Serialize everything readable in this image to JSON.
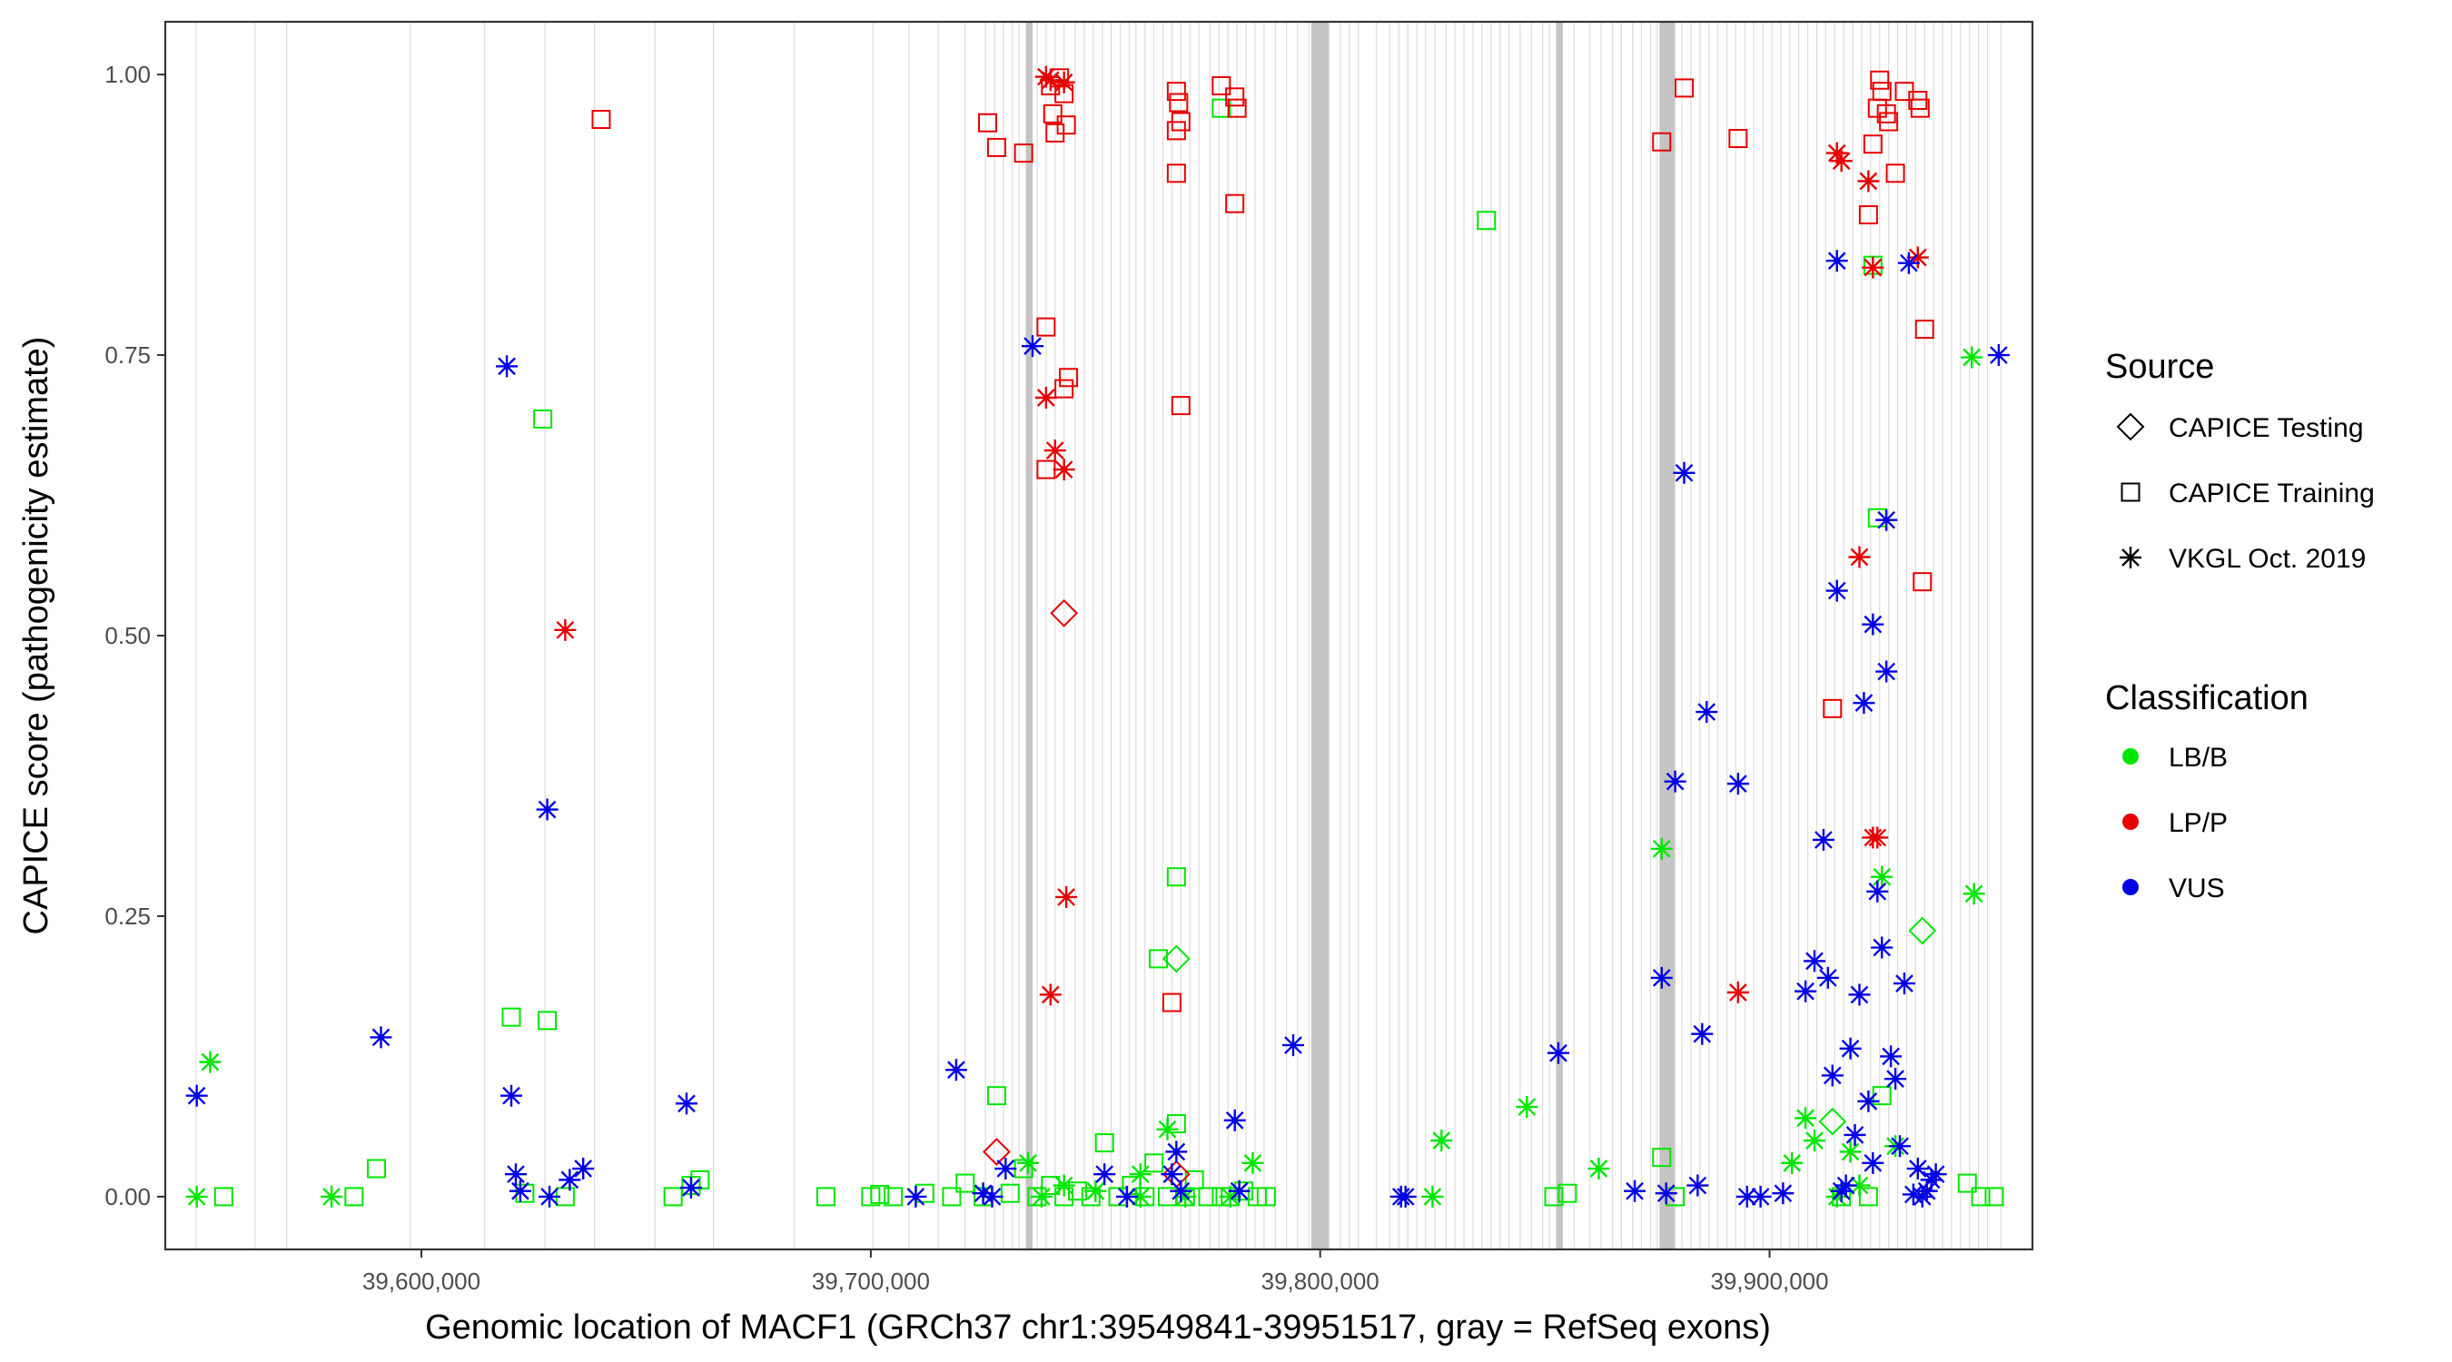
{
  "chart_data": {
    "type": "scatter",
    "xlabel": "Genomic location of MACF1 (GRCh37 chr1:39549841-39951517, gray = RefSeq exons)",
    "ylabel": "CAPICE score (pathogenicity estimate)",
    "xlim": [
      39543000,
      39958500
    ],
    "ylim": [
      -0.047,
      1.047
    ],
    "x_ticks": [
      39600000,
      39700000,
      39800000,
      39900000
    ],
    "x_tick_labels": [
      "39,600,000",
      "39,700,000",
      "39,800,000",
      "39,900,000"
    ],
    "y_ticks": [
      0,
      0.25,
      0.5,
      0.75,
      1.0
    ],
    "y_tick_labels": [
      "0.00",
      "0.25",
      "0.50",
      "0.75",
      "1.00"
    ],
    "grid": false,
    "exons": {
      "thin": [
        39549841,
        39563000,
        39570000,
        39597500,
        39614000,
        39627500,
        39638500,
        39652000,
        39665000,
        39683000,
        39700500,
        39708500,
        39715000,
        39721000,
        39725500,
        39727500,
        39729500,
        39731500,
        39733000,
        39735000,
        39737000,
        39739000,
        39741000,
        39743000,
        39745500,
        39747500,
        39749500,
        39751500,
        39753500,
        39755500,
        39757500,
        39759000,
        39761000,
        39763000,
        39765000,
        39767000,
        39769000,
        39771000,
        39773000,
        39775500,
        39777500,
        39779500,
        39781500,
        39783500,
        39785500,
        39787500,
        39790000,
        39792500,
        39795000,
        39797500,
        39804500,
        39806500,
        39808500,
        39812500,
        39815500,
        39817500,
        39819500,
        39821500,
        39823500,
        39825500,
        39828000,
        39830000,
        39832000,
        39834000,
        39836000,
        39838000,
        39840000,
        39842000,
        39844500,
        39847000,
        39849500,
        39851000,
        39856500,
        39860000,
        39862500,
        39865000,
        39867000,
        39869500,
        39871500,
        39873500,
        39875000,
        39880500,
        39882500,
        39884500,
        39886500,
        39888500,
        39890500,
        39892500,
        39894500,
        39896500,
        39898500,
        39900500,
        39902500,
        39904500,
        39906500,
        39908500,
        39910500,
        39912500,
        39914500,
        39916500,
        39918500,
        39920500,
        39922500,
        39924500,
        39926500,
        39928500,
        39930500,
        39932500,
        39934500,
        39936500,
        39938500,
        39940500,
        39942500,
        39944500,
        39946500,
        39948500,
        39951517
      ],
      "thick": [
        [
          39734500,
          39736000
        ],
        [
          39798000,
          39802000
        ],
        [
          39852500,
          39854000
        ],
        [
          39875500,
          39879000
        ]
      ]
    },
    "series": [
      {
        "name": "VKGL LB/B",
        "source": "VKGL Oct. 2019",
        "classification": "LB/B",
        "shape": "asterisk",
        "color": "#00e600",
        "x": [
          39550000,
          39553000,
          39580000,
          39735000,
          39738000,
          39743000,
          39750000,
          39760000,
          39766000,
          39770000,
          39785000,
          39827000,
          39846000,
          39862000,
          39876000,
          39908000,
          39910000,
          39915000,
          39918000,
          39925000,
          39928000,
          39945000,
          39945500,
          39760000,
          39780000,
          39825000,
          39905000,
          39920000
        ],
        "y": [
          0.0,
          0.12,
          0.0,
          0.03,
          0.0,
          0.01,
          0.005,
          0.02,
          0.06,
          0.0,
          0.03,
          0.05,
          0.08,
          0.025,
          0.31,
          0.07,
          0.05,
          0.0,
          0.04,
          0.285,
          0.045,
          0.748,
          0.27,
          0.0,
          0.0,
          0.0,
          0.03,
          0.01
        ]
      },
      {
        "name": "Training LB/B",
        "source": "CAPICE Training",
        "classification": "LB/B",
        "shape": "square",
        "color": "#00e600",
        "x": [
          39556000,
          39585000,
          39590000,
          39620000,
          39623000,
          39628000,
          39627000,
          39632000,
          39656000,
          39660000,
          39662000,
          39690000,
          39700000,
          39702000,
          39705000,
          39712000,
          39718000,
          39721000,
          39725000,
          39728000,
          39731000,
          39734000,
          39737000,
          39740000,
          39743000,
          39746000,
          39749000,
          39752000,
          39755000,
          39758000,
          39761000,
          39763000,
          39766000,
          39768000,
          39770000,
          39772000,
          39775000,
          39778000,
          39780000,
          39783000,
          39786000,
          39788000,
          39837000,
          39852000,
          39855000,
          39876000,
          39879000,
          39916000,
          39922000,
          39925000,
          39944000,
          39947000,
          39950000,
          39924000,
          39768000,
          39764000,
          39778000,
          39923000
        ],
        "y": [
          0.0,
          0.0,
          0.025,
          0.16,
          0.003,
          0.157,
          0.693,
          0.0,
          0.0,
          0.01,
          0.015,
          0.0,
          0.0,
          0.002,
          0.0,
          0.003,
          0.0,
          0.012,
          0.0,
          0.09,
          0.003,
          0.025,
          0.0,
          0.01,
          0.0,
          0.005,
          0.0,
          0.048,
          0.0,
          0.01,
          0.0,
          0.03,
          0.0,
          0.065,
          0.0,
          0.015,
          0.0,
          0.0,
          0.0,
          0.005,
          0.0,
          0.0,
          0.87,
          0.0,
          0.003,
          0.035,
          0.0,
          0.0,
          0.0,
          0.09,
          0.012,
          0.0,
          0.0,
          0.605,
          0.285,
          0.212,
          0.97,
          0.83
        ]
      },
      {
        "name": "Testing LB/B",
        "source": "CAPICE Testing",
        "classification": "LB/B",
        "shape": "diamond",
        "color": "#00e600",
        "x": [
          39768000,
          39914000,
          39934000
        ],
        "y": [
          0.212,
          0.067,
          0.237
        ]
      },
      {
        "name": "VKGL LP/P",
        "source": "VKGL Oct. 2019",
        "classification": "LP/P",
        "shape": "asterisk",
        "color": "#e60000",
        "x": [
          39632000,
          39739000,
          39740000,
          39741000,
          39743000,
          39743500,
          39743000,
          39739000,
          39740000,
          39893000,
          39915000,
          39916000,
          39920000,
          39922000,
          39923000,
          39923000,
          39924000,
          39933000
        ],
        "y": [
          0.505,
          0.998,
          0.995,
          0.665,
          0.648,
          0.267,
          0.993,
          0.712,
          0.18,
          0.182,
          0.93,
          0.923,
          0.57,
          0.905,
          0.32,
          0.828,
          0.32,
          0.837
        ]
      },
      {
        "name": "Training LP/P",
        "source": "CAPICE Training",
        "classification": "LP/P",
        "shape": "square",
        "color": "#e60000",
        "x": [
          39640000,
          39726000,
          39728000,
          39734000,
          39739000,
          39740000,
          39740500,
          39741000,
          39742000,
          39743000,
          39743500,
          39744000,
          39743000,
          39767000,
          39768000,
          39768500,
          39769000,
          39768000,
          39768000,
          39769000,
          39778000,
          39781000,
          39781500,
          39781000,
          39739000,
          39876000,
          39881000,
          39893000,
          39914000,
          39922000,
          39923000,
          39924000,
          39924500,
          39925000,
          39926000,
          39926500,
          39928000,
          39930000,
          39933000,
          39933500,
          39934000,
          39934500
        ],
        "y": [
          0.96,
          0.957,
          0.935,
          0.93,
          0.775,
          0.99,
          0.965,
          0.948,
          0.997,
          0.983,
          0.955,
          0.73,
          0.72,
          0.173,
          0.985,
          0.975,
          0.958,
          0.95,
          0.912,
          0.705,
          0.99,
          0.98,
          0.97,
          0.885,
          0.648,
          0.94,
          0.988,
          0.943,
          0.435,
          0.875,
          0.938,
          0.97,
          0.995,
          0.985,
          0.965,
          0.958,
          0.912,
          0.985,
          0.977,
          0.97,
          0.548,
          0.773
        ]
      },
      {
        "name": "Testing LP/P",
        "source": "CAPICE Testing",
        "classification": "LP/P",
        "shape": "diamond",
        "color": "#e60000",
        "x": [
          39728000,
          39743000,
          39768000
        ],
        "y": [
          0.04,
          0.52,
          0.02
        ]
      },
      {
        "name": "VKGL VUS",
        "source": "VKGL Oct. 2019",
        "classification": "VUS",
        "shape": "asterisk",
        "color": "#0000e6",
        "x": [
          39550000,
          39591000,
          39619000,
          39620000,
          39621000,
          39622000,
          39628000,
          39628500,
          39633000,
          39636000,
          39659000,
          39660000,
          39710000,
          39719000,
          39725000,
          39727000,
          39730000,
          39736000,
          39752000,
          39757000,
          39767000,
          39768000,
          39769000,
          39781000,
          39782000,
          39794000,
          39818000,
          39819000,
          39853000,
          39870000,
          39876000,
          39877000,
          39879000,
          39881000,
          39884000,
          39885000,
          39886000,
          39893000,
          39895000,
          39898000,
          39903000,
          39908000,
          39910000,
          39912000,
          39913000,
          39914000,
          39915000,
          39916000,
          39917000,
          39918000,
          39919000,
          39920000,
          39921000,
          39922000,
          39923000,
          39924000,
          39925000,
          39926000,
          39927000,
          39928000,
          39929000,
          39930000,
          39931000,
          39932000,
          39933000,
          39934000,
          39935000,
          39936000,
          39937000,
          39951000,
          39926000,
          39915000,
          39923000
        ],
        "y": [
          0.09,
          0.142,
          0.74,
          0.09,
          0.02,
          0.005,
          0.345,
          0.0,
          0.015,
          0.025,
          0.083,
          0.008,
          0.0,
          0.113,
          0.003,
          0.0,
          0.025,
          0.758,
          0.02,
          0.0,
          0.02,
          0.04,
          0.005,
          0.068,
          0.005,
          0.135,
          0.0,
          0.0,
          0.128,
          0.005,
          0.195,
          0.003,
          0.37,
          0.645,
          0.01,
          0.145,
          0.432,
          0.368,
          0.0,
          0.0,
          0.003,
          0.183,
          0.21,
          0.318,
          0.195,
          0.108,
          0.54,
          0.005,
          0.01,
          0.132,
          0.055,
          0.18,
          0.44,
          0.085,
          0.51,
          0.272,
          0.222,
          0.468,
          0.125,
          0.105,
          0.045,
          0.19,
          0.832,
          0.002,
          0.025,
          0.0,
          0.005,
          0.015,
          0.02,
          0.75,
          0.603,
          0.834,
          0.03
        ]
      }
    ],
    "legend": {
      "source_title": "Source",
      "source_items": [
        {
          "label": "CAPICE Testing",
          "shape": "diamond"
        },
        {
          "label": "CAPICE Training",
          "shape": "square"
        },
        {
          "label": "VKGL Oct. 2019",
          "shape": "asterisk"
        }
      ],
      "class_title": "Classification",
      "class_items": [
        {
          "label": "LB/B",
          "color": "#00e600"
        },
        {
          "label": "LP/P",
          "color": "#e60000"
        },
        {
          "label": "VUS",
          "color": "#0000e6"
        }
      ]
    }
  }
}
